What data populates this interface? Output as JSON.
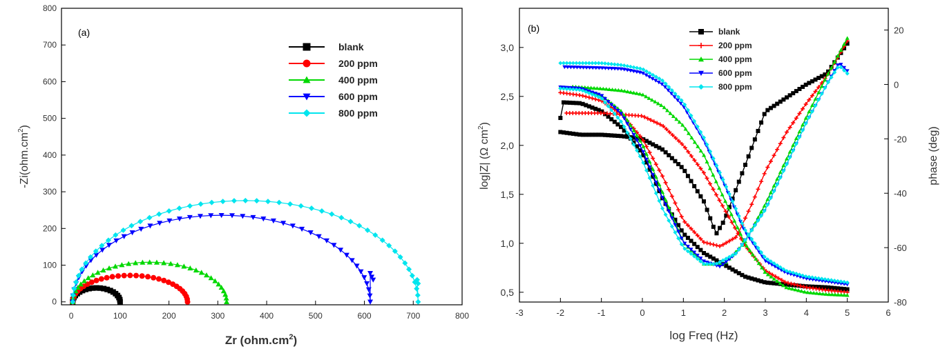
{
  "chart_data": [
    {
      "type": "scatter",
      "panel_label": "(a)",
      "xlabel_main": "Zr (ohm.cm",
      "xlabel_sup": "2",
      "xlabel_tail": ")",
      "ylabel_main": "-Zi(ohm.cm",
      "ylabel_sup": "2",
      "ylabel_tail": ")",
      "xlim": [
        -20,
        800
      ],
      "ylim": [
        -8,
        800
      ],
      "xticks": [
        0,
        100,
        200,
        300,
        400,
        500,
        600,
        700,
        800
      ],
      "yticks": [
        0,
        100,
        200,
        300,
        400,
        500,
        600,
        700,
        800
      ],
      "series": [
        {
          "name": "blank",
          "color": "#000000",
          "marker": "square",
          "x0": 3,
          "x1": 100,
          "h": 38,
          "n": 20,
          "tail": []
        },
        {
          "name": "200 ppm",
          "color": "#ff0000",
          "marker": "circle",
          "x0": 3,
          "x1": 238,
          "h": 72,
          "n": 30,
          "tail": []
        },
        {
          "name": "400 ppm",
          "color": "#00d800",
          "marker": "triangle-up",
          "x0": 3,
          "x1": 318,
          "h": 108,
          "n": 34,
          "tail": []
        },
        {
          "name": "600 ppm",
          "color": "#0000ff",
          "marker": "triangle-down",
          "x0": 3,
          "x1": 612,
          "h": 236,
          "n": 44,
          "tail": [
            [
              612,
              78
            ],
            [
              615,
              68
            ],
            [
              618,
              60
            ]
          ]
        },
        {
          "name": "800 ppm",
          "color": "#00e5ee",
          "marker": "diamond",
          "x0": 3,
          "x1": 710,
          "h": 276,
          "n": 48,
          "tail": [
            [
              708,
              60
            ],
            [
              710,
              50
            ]
          ]
        }
      ]
    },
    {
      "type": "line",
      "panel_label": "(b)",
      "xlabel": "log Freq (Hz)",
      "ylabel_left_main": "log|Z| (Ω cm",
      "ylabel_left_sup": "2",
      "ylabel_left_tail": ")",
      "ylabel_right": "phase (deg)",
      "xlim": [
        -3,
        6
      ],
      "ylim_left": [
        0.4,
        3.4
      ],
      "ylim_right": [
        -80,
        28
      ],
      "xticks": [
        -3,
        -2,
        -1,
        0,
        1,
        2,
        3,
        4,
        5,
        6
      ],
      "yticks_left": [
        "0,5",
        "1,0",
        "1,5",
        "2,0",
        "2,5",
        "3,0"
      ],
      "yticks_left_values": [
        0.5,
        1.0,
        1.5,
        2.0,
        2.5,
        3.0
      ],
      "yticks_right": [
        -80,
        -60,
        -40,
        -20,
        0,
        20
      ],
      "series": [
        {
          "name": "blank",
          "color": "#000000",
          "marker": "square",
          "logz": [
            [
              -2.0,
              2.28
            ],
            [
              -1.98,
              2.44
            ],
            [
              -1.5,
              2.43
            ],
            [
              -1.0,
              2.35
            ],
            [
              -0.5,
              2.18
            ],
            [
              0.0,
              1.92
            ],
            [
              0.5,
              1.45
            ],
            [
              1.0,
              1.1
            ],
            [
              1.5,
              0.9
            ],
            [
              2.0,
              0.78
            ],
            [
              2.5,
              0.66
            ],
            [
              3.0,
              0.6
            ],
            [
              3.5,
              0.58
            ],
            [
              4.0,
              0.56
            ],
            [
              4.5,
              0.55
            ],
            [
              5.0,
              0.53
            ]
          ],
          "phase": [
            [
              -2.0,
              -17.5
            ],
            [
              -1.5,
              -18.5
            ],
            [
              -1.0,
              -18.5
            ],
            [
              -0.5,
              -19.0
            ],
            [
              0.0,
              -20.0
            ],
            [
              0.5,
              -24.0
            ],
            [
              1.0,
              -31.0
            ],
            [
              1.5,
              -43.0
            ],
            [
              1.8,
              -55.0
            ],
            [
              2.0,
              -50.0
            ],
            [
              2.5,
              -30.0
            ],
            [
              2.8,
              -18.0
            ],
            [
              3.0,
              -10.0
            ],
            [
              3.5,
              -5.0
            ],
            [
              4.0,
              0.0
            ],
            [
              4.5,
              4.0
            ],
            [
              5.0,
              15.0
            ]
          ]
        },
        {
          "name": "200 ppm",
          "color": "#ff0000",
          "marker": "plus",
          "logz": [
            [
              -1.85,
              2.33
            ],
            [
              -1.0,
              2.33
            ],
            [
              0.0,
              2.3
            ],
            [
              0.5,
              2.2
            ],
            [
              1.0,
              2.0
            ],
            [
              1.5,
              1.72
            ],
            [
              2.0,
              1.35
            ],
            [
              2.5,
              0.98
            ],
            [
              3.0,
              0.72
            ],
            [
              3.5,
              0.6
            ],
            [
              4.0,
              0.55
            ],
            [
              4.5,
              0.52
            ],
            [
              5.0,
              0.5
            ]
          ],
          "phase": [
            [
              -2.0,
              -3.0
            ],
            [
              -1.5,
              -4.0
            ],
            [
              -1.0,
              -6.0
            ],
            [
              -0.5,
              -11.0
            ],
            [
              0.0,
              -20.0
            ],
            [
              0.5,
              -34.0
            ],
            [
              1.0,
              -50.0
            ],
            [
              1.5,
              -58.0
            ],
            [
              1.9,
              -59.5
            ],
            [
              2.3,
              -56.0
            ],
            [
              2.7,
              -43.0
            ],
            [
              3.0,
              -32.0
            ],
            [
              3.5,
              -18.0
            ],
            [
              4.0,
              -7.0
            ],
            [
              4.5,
              3.0
            ],
            [
              5.0,
              16.0
            ]
          ]
        },
        {
          "name": "400 ppm",
          "color": "#00d800",
          "marker": "triangle-up",
          "logz": [
            [
              -1.7,
              2.6
            ],
            [
              -1.0,
              2.58
            ],
            [
              -0.5,
              2.56
            ],
            [
              0.0,
              2.52
            ],
            [
              0.5,
              2.4
            ],
            [
              1.0,
              2.2
            ],
            [
              1.5,
              1.9
            ],
            [
              2.0,
              1.45
            ],
            [
              2.5,
              1.0
            ],
            [
              3.0,
              0.7
            ],
            [
              3.5,
              0.55
            ],
            [
              4.0,
              0.5
            ],
            [
              4.5,
              0.48
            ],
            [
              5.0,
              0.47
            ]
          ],
          "phase": [
            [
              -2.0,
              -1.0
            ],
            [
              -1.5,
              -1.5
            ],
            [
              -1.0,
              -4.0
            ],
            [
              -0.5,
              -10.0
            ],
            [
              0.0,
              -22.0
            ],
            [
              0.5,
              -40.0
            ],
            [
              1.0,
              -58.0
            ],
            [
              1.5,
              -66.0
            ],
            [
              2.0,
              -66.0
            ],
            [
              2.5,
              -58.0
            ],
            [
              3.0,
              -44.0
            ],
            [
              3.5,
              -28.0
            ],
            [
              4.0,
              -12.0
            ],
            [
              4.5,
              3.0
            ],
            [
              5.0,
              17.0
            ]
          ]
        },
        {
          "name": "600 ppm",
          "color": "#0000ff",
          "marker": "triangle-down",
          "logz": [
            [
              -1.9,
              2.8
            ],
            [
              -1.0,
              2.79
            ],
            [
              -0.5,
              2.78
            ],
            [
              0.0,
              2.74
            ],
            [
              0.5,
              2.62
            ],
            [
              1.0,
              2.4
            ],
            [
              1.5,
              2.05
            ],
            [
              2.0,
              1.6
            ],
            [
              2.5,
              1.12
            ],
            [
              3.0,
              0.82
            ],
            [
              3.5,
              0.7
            ],
            [
              4.0,
              0.64
            ],
            [
              4.5,
              0.61
            ],
            [
              5.0,
              0.58
            ]
          ],
          "phase": [
            [
              -2.0,
              -1.0
            ],
            [
              -1.5,
              -1.5
            ],
            [
              -1.0,
              -4.0
            ],
            [
              -0.5,
              -11.0
            ],
            [
              0.0,
              -24.0
            ],
            [
              0.5,
              -42.0
            ],
            [
              1.0,
              -58.0
            ],
            [
              1.5,
              -65.0
            ],
            [
              1.9,
              -67.0
            ],
            [
              2.3,
              -62.0
            ],
            [
              3.0,
              -46.0
            ],
            [
              3.5,
              -30.0
            ],
            [
              4.0,
              -14.0
            ],
            [
              4.5,
              0.0
            ],
            [
              4.8,
              8.0
            ],
            [
              5.0,
              5.0
            ]
          ]
        },
        {
          "name": "800 ppm",
          "color": "#00e5ee",
          "marker": "diamond",
          "logz": [
            [
              -2.0,
              2.84
            ],
            [
              -1.0,
              2.84
            ],
            [
              -0.5,
              2.82
            ],
            [
              0.0,
              2.78
            ],
            [
              0.5,
              2.66
            ],
            [
              1.0,
              2.44
            ],
            [
              1.5,
              2.08
            ],
            [
              2.0,
              1.62
            ],
            [
              2.5,
              1.14
            ],
            [
              3.0,
              0.85
            ],
            [
              3.5,
              0.72
            ],
            [
              4.0,
              0.66
            ],
            [
              4.5,
              0.63
            ],
            [
              5.0,
              0.6
            ]
          ],
          "phase": [
            [
              -2.0,
              -1.5
            ],
            [
              -1.5,
              -2.0
            ],
            [
              -1.0,
              -5.0
            ],
            [
              -0.5,
              -14.0
            ],
            [
              0.0,
              -28.0
            ],
            [
              0.5,
              -46.0
            ],
            [
              1.0,
              -60.0
            ],
            [
              1.5,
              -66.0
            ],
            [
              1.8,
              -66.0
            ],
            [
              2.3,
              -62.0
            ],
            [
              3.0,
              -46.0
            ],
            [
              3.5,
              -30.0
            ],
            [
              4.0,
              -14.0
            ],
            [
              4.5,
              0.0
            ],
            [
              4.8,
              7.0
            ],
            [
              5.0,
              4.0
            ]
          ]
        }
      ]
    }
  ]
}
